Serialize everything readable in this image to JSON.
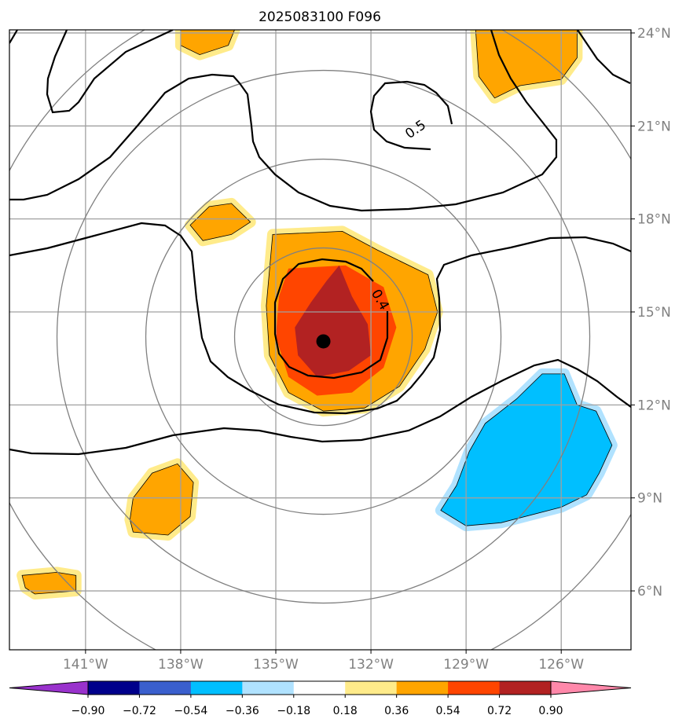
{
  "chart_data": {
    "type": "heatmap",
    "title": "2025083100 F096",
    "projection": "map, longitude/latitude",
    "xlim_lon": [
      -143.4,
      -123.8
    ],
    "ylim_lat": [
      4.1,
      24.1
    ],
    "lon_ticks": [
      -141,
      -138,
      -135,
      -132,
      -129,
      -126
    ],
    "lat_ticks": [
      24,
      21,
      18,
      15,
      12,
      9,
      6
    ],
    "lon_tick_labels": [
      "141°W",
      "138°W",
      "135°W",
      "132°W",
      "129°W",
      "126°W"
    ],
    "lat_tick_labels": [
      "24°N",
      "21°N",
      "18°N",
      "15°N",
      "12°N",
      "9°N",
      "6°N"
    ],
    "grid": true,
    "center_marker": {
      "lon": -133.5,
      "lat": 14.05
    },
    "range_rings_center": {
      "lon": -133.5,
      "lat": 14.2
    },
    "range_rings_radius_deg": [
      2.8,
      5.6,
      8.4,
      11.2
    ],
    "contour_labels": [
      {
        "text": "0.5",
        "lon": -130.6,
        "lat": 20.9
      },
      {
        "text": "0.4",
        "lon": -131.7,
        "lat": 15.4
      }
    ],
    "shading_regions": [
      {
        "name": "central-blob-outer",
        "level": 0.36,
        "color": "#ffa500",
        "points": [
          [
            -135.1,
            17.5
          ],
          [
            -132.9,
            17.6
          ],
          [
            -131.8,
            17.0
          ],
          [
            -130.2,
            16.2
          ],
          [
            -129.9,
            15.0
          ],
          [
            -130.3,
            13.8
          ],
          [
            -131.1,
            12.6
          ],
          [
            -132.2,
            11.9
          ],
          [
            -133.5,
            11.8
          ],
          [
            -134.6,
            12.4
          ],
          [
            -135.2,
            13.6
          ],
          [
            -135.3,
            15.2
          ]
        ]
      },
      {
        "name": "central-blob-mid",
        "level": 0.54,
        "color": "#ff4500",
        "points": [
          [
            -134.6,
            16.4
          ],
          [
            -132.8,
            16.5
          ],
          [
            -131.6,
            15.8
          ],
          [
            -131.2,
            14.5
          ],
          [
            -131.6,
            13.2
          ],
          [
            -132.6,
            12.4
          ],
          [
            -133.7,
            12.3
          ],
          [
            -134.6,
            12.9
          ],
          [
            -135.0,
            14.2
          ],
          [
            -134.9,
            15.5
          ]
        ]
      },
      {
        "name": "central-blob-inner",
        "level": 0.72,
        "color": "#b22222",
        "points": [
          [
            -133.0,
            16.5
          ],
          [
            -132.6,
            15.5
          ],
          [
            -132.1,
            14.6
          ],
          [
            -132.0,
            13.6
          ],
          [
            -132.7,
            13.1
          ],
          [
            -133.7,
            12.9
          ],
          [
            -134.3,
            13.6
          ],
          [
            -134.4,
            14.5
          ],
          [
            -133.9,
            15.3
          ],
          [
            -133.4,
            16.0
          ]
        ]
      },
      {
        "name": "ne-blob",
        "level": 0.36,
        "color": "#ffa500",
        "points": [
          [
            -128.7,
            24.1
          ],
          [
            -125.5,
            24.1
          ],
          [
            -125.5,
            23.2
          ],
          [
            -126.0,
            22.5
          ],
          [
            -127.3,
            22.3
          ],
          [
            -128.1,
            21.9
          ],
          [
            -128.6,
            22.6
          ]
        ]
      },
      {
        "name": "nw-blob",
        "level": 0.36,
        "color": "#ffa500",
        "points": [
          [
            -138.0,
            24.1
          ],
          [
            -136.3,
            24.1
          ],
          [
            -136.5,
            23.6
          ],
          [
            -137.4,
            23.3
          ],
          [
            -138.0,
            23.6
          ]
        ]
      },
      {
        "name": "small-18n-blob",
        "level": 0.36,
        "color": "#ffa500",
        "points": [
          [
            -137.7,
            17.8
          ],
          [
            -137.1,
            18.4
          ],
          [
            -136.4,
            18.5
          ],
          [
            -135.8,
            17.9
          ],
          [
            -136.4,
            17.5
          ],
          [
            -137.3,
            17.3
          ]
        ]
      },
      {
        "name": "sw-blob",
        "level": 0.36,
        "color": "#ffa500",
        "points": [
          [
            -139.5,
            9.0
          ],
          [
            -138.9,
            9.8
          ],
          [
            -138.1,
            10.1
          ],
          [
            -137.6,
            9.5
          ],
          [
            -137.7,
            8.4
          ],
          [
            -138.4,
            7.8
          ],
          [
            -139.5,
            7.9
          ],
          [
            -139.6,
            8.3
          ]
        ]
      },
      {
        "name": "far-sw-blob",
        "level": 0.36,
        "color": "#ffa500",
        "points": [
          [
            -143.0,
            6.5
          ],
          [
            -141.9,
            6.6
          ],
          [
            -141.3,
            6.5
          ],
          [
            -141.3,
            6.0
          ],
          [
            -142.6,
            5.9
          ],
          [
            -142.9,
            6.1
          ]
        ]
      },
      {
        "name": "se-negative-blob",
        "level": -0.36,
        "color": "#00bfff",
        "points": [
          [
            -128.4,
            11.4
          ],
          [
            -127.4,
            12.2
          ],
          [
            -126.6,
            13.0
          ],
          [
            -125.9,
            13.0
          ],
          [
            -125.5,
            12.0
          ],
          [
            -124.9,
            11.8
          ],
          [
            -124.4,
            10.7
          ],
          [
            -124.8,
            9.8
          ],
          [
            -125.2,
            9.1
          ],
          [
            -126.0,
            8.7
          ],
          [
            -127.9,
            8.2
          ],
          [
            -129.0,
            8.1
          ],
          [
            -129.8,
            8.6
          ],
          [
            -129.3,
            9.4
          ],
          [
            -128.9,
            10.5
          ]
        ]
      }
    ],
    "colorbar": {
      "tick_labels": [
        "−0.90",
        "−0.72",
        "−0.54",
        "−0.36",
        "−0.18",
        "0.18",
        "0.36",
        "0.54",
        "0.72",
        "0.90"
      ],
      "ticks": [
        -0.9,
        -0.72,
        -0.54,
        -0.36,
        -0.18,
        0.18,
        0.36,
        0.54,
        0.72,
        0.9
      ],
      "colors": [
        "#9932cc",
        "#00008b",
        "#3a5fcd",
        "#00bfff",
        "#b0e2ff",
        "#ffffff",
        "#ffeb8a",
        "#ffa500",
        "#ff4500",
        "#b22222",
        "#ff88aa"
      ],
      "extend": "both"
    }
  }
}
